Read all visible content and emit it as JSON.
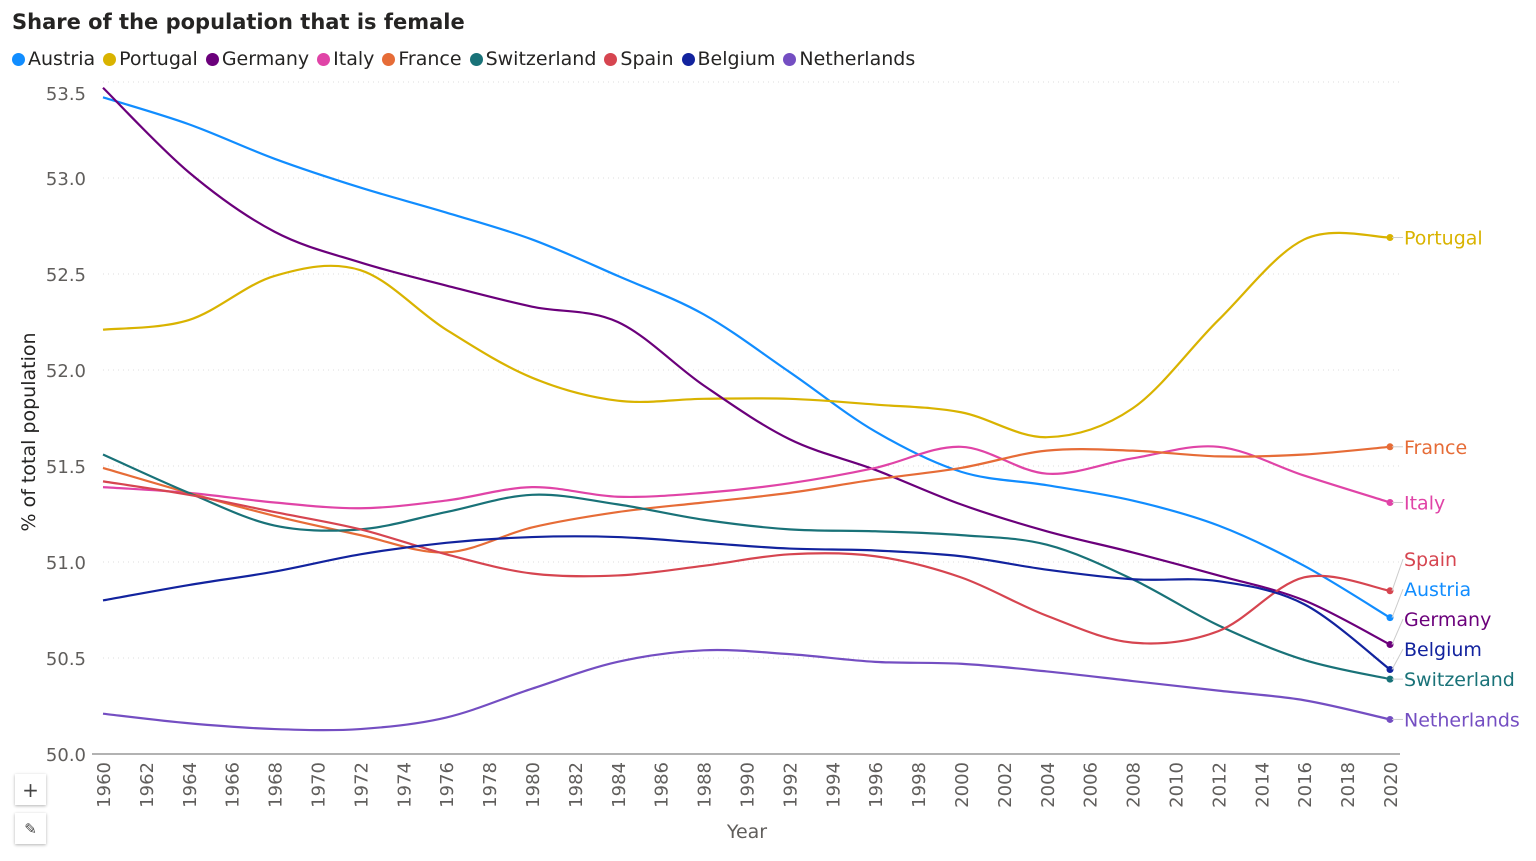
{
  "chart_data": {
    "type": "line",
    "title": "Share of the population that is female",
    "xlabel": "Year",
    "ylabel": "% of total population",
    "ylim": [
      50.0,
      53.5
    ],
    "yticks": [
      "50.0",
      "50.5",
      "51.0",
      "51.5",
      "52.0",
      "52.5",
      "53.0",
      "53.5"
    ],
    "xticks": [
      "1960",
      "1962",
      "1964",
      "1966",
      "1968",
      "1970",
      "1972",
      "1974",
      "1976",
      "1978",
      "1980",
      "1982",
      "1984",
      "1986",
      "1988",
      "1990",
      "1992",
      "1994",
      "1996",
      "1998",
      "2000",
      "2002",
      "2004",
      "2006",
      "2008",
      "2010",
      "2012",
      "2014",
      "2016",
      "2018",
      "2020"
    ],
    "grid": true,
    "legend": "top-left",
    "x": [
      1960,
      1964,
      1968,
      1972,
      1976,
      1980,
      1984,
      1988,
      1992,
      1996,
      2000,
      2004,
      2008,
      2012,
      2016,
      2020
    ],
    "series": [
      {
        "name": "Austria",
        "color": "#118DFF",
        "values": [
          53.42,
          53.28,
          53.1,
          52.95,
          52.82,
          52.68,
          52.49,
          52.29,
          51.99,
          51.68,
          51.47,
          51.4,
          51.32,
          51.19,
          50.98,
          50.71
        ]
      },
      {
        "name": "Portugal",
        "color": "#D9B300",
        "values": [
          52.21,
          52.26,
          52.49,
          52.52,
          52.21,
          51.96,
          51.84,
          51.85,
          51.85,
          51.82,
          51.78,
          51.65,
          51.8,
          52.26,
          52.68,
          52.69
        ]
      },
      {
        "name": "Germany",
        "color": "#6B007B",
        "values": [
          53.47,
          53.03,
          52.72,
          52.56,
          52.44,
          52.33,
          52.25,
          51.92,
          51.64,
          51.48,
          51.3,
          51.16,
          51.05,
          50.93,
          50.8,
          50.57
        ]
      },
      {
        "name": "Italy",
        "color": "#E044A7",
        "values": [
          51.39,
          51.36,
          51.31,
          51.28,
          51.32,
          51.39,
          51.34,
          51.36,
          51.41,
          51.49,
          51.6,
          51.46,
          51.54,
          51.6,
          51.45,
          51.31
        ]
      },
      {
        "name": "France",
        "color": "#E66C37",
        "values": [
          51.49,
          51.36,
          51.24,
          51.14,
          51.05,
          51.18,
          51.26,
          51.31,
          51.36,
          51.43,
          51.49,
          51.58,
          51.58,
          51.55,
          51.56,
          51.6
        ]
      },
      {
        "name": "Switzerland",
        "color": "#197278",
        "values": [
          51.56,
          51.36,
          51.19,
          51.17,
          51.26,
          51.35,
          51.3,
          51.22,
          51.17,
          51.16,
          51.14,
          51.09,
          50.91,
          50.67,
          50.49,
          50.39
        ]
      },
      {
        "name": "Spain",
        "color": "#D64550",
        "values": [
          51.42,
          51.35,
          51.26,
          51.17,
          51.04,
          50.94,
          50.93,
          50.98,
          51.04,
          51.03,
          50.92,
          50.72,
          50.58,
          50.64,
          50.92,
          50.85
        ]
      },
      {
        "name": "Belgium",
        "color": "#12239E",
        "values": [
          50.8,
          50.88,
          50.95,
          51.04,
          51.1,
          51.13,
          51.13,
          51.1,
          51.07,
          51.06,
          51.03,
          50.96,
          50.91,
          50.9,
          50.78,
          50.44
        ]
      },
      {
        "name": "Netherlands",
        "color": "#744EC2",
        "values": [
          50.21,
          50.16,
          50.13,
          50.13,
          50.19,
          50.34,
          50.48,
          50.54,
          50.52,
          50.48,
          50.47,
          50.43,
          50.38,
          50.33,
          50.28,
          50.18
        ]
      }
    ]
  },
  "controls": {
    "zoom_icon": "plus-icon",
    "edit_icon": "pencil-icon"
  }
}
